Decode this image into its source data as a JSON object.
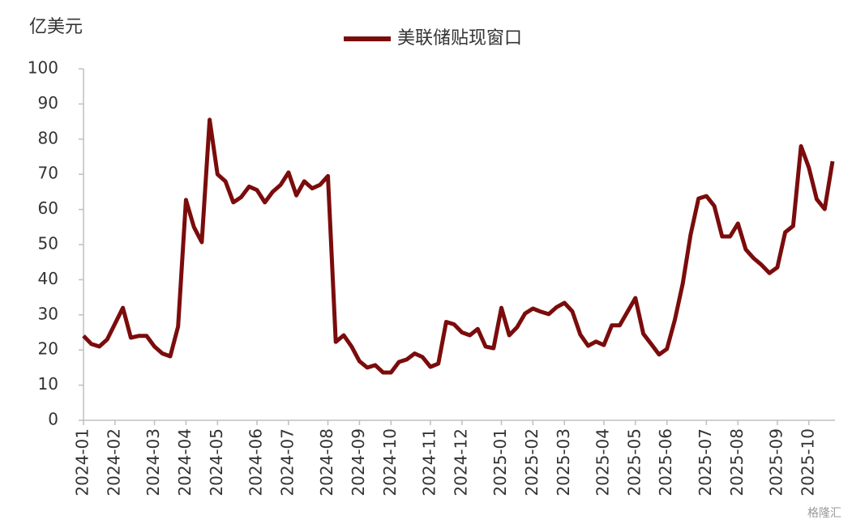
{
  "chart_data": {
    "type": "line",
    "y_unit_label": "亿美元",
    "watermark": "格隆汇",
    "categories": [
      "2024-01",
      null,
      null,
      null,
      "2024-02",
      null,
      null,
      null,
      null,
      "2024-03",
      null,
      null,
      null,
      "2024-04",
      null,
      null,
      null,
      "2024-05",
      null,
      null,
      null,
      null,
      "2024-06",
      null,
      null,
      null,
      "2024-07",
      null,
      null,
      null,
      null,
      "2024-08",
      null,
      null,
      null,
      "2024-09",
      null,
      null,
      null,
      "2024-10",
      null,
      null,
      null,
      null,
      "2024-11",
      null,
      null,
      null,
      "2024-12",
      null,
      null,
      null,
      null,
      "2025-01",
      null,
      null,
      null,
      "2025-02",
      null,
      null,
      null,
      "2025-03",
      null,
      null,
      null,
      null,
      "2025-04",
      null,
      null,
      null,
      "2025-05",
      null,
      null,
      null,
      "2025-06",
      null,
      null,
      null,
      null,
      "2025-07",
      null,
      null,
      null,
      "2025-08",
      null,
      null,
      null,
      null,
      "2025-09",
      null,
      null,
      null,
      "2025-10",
      null,
      null,
      null
    ],
    "series": [
      {
        "name": "美联储贴现窗口",
        "color": "#7b0c0c",
        "values": [
          24,
          21.7,
          21,
          23,
          27.5,
          32,
          23.5,
          24,
          24,
          21,
          19,
          18.2,
          26.7,
          62.7,
          55,
          50.7,
          85.5,
          70,
          68,
          62,
          63.5,
          66.5,
          65.5,
          62,
          65,
          67,
          70.5,
          64,
          68,
          66,
          67,
          69.5,
          22.3,
          24.2,
          21,
          16.8,
          15,
          15.7,
          13.6,
          13.6,
          16.6,
          17.3,
          19,
          18,
          15.2,
          16.1,
          28,
          27.3,
          25,
          24.2,
          26,
          21,
          20.5,
          32,
          24.2,
          26.5,
          30.4,
          31.8,
          30.9,
          30.2,
          32.2,
          33.4,
          31,
          24.4,
          21.2,
          22.4,
          21.4,
          27,
          27,
          30.9,
          34.8,
          24.6,
          21.7,
          18.7,
          20.3,
          28.6,
          38.9,
          52.8,
          63.1,
          63.8,
          61,
          52.3,
          52.3,
          56,
          48.6,
          46.1,
          44.2,
          41.9,
          43.5,
          53.5,
          55.3,
          78,
          71.9,
          62.9,
          60.1,
          73.7
        ]
      }
    ],
    "ylim": [
      0,
      100
    ],
    "yticks": [
      0,
      10,
      20,
      30,
      40,
      50,
      60,
      70,
      80,
      90,
      100
    ],
    "grid": false
  }
}
